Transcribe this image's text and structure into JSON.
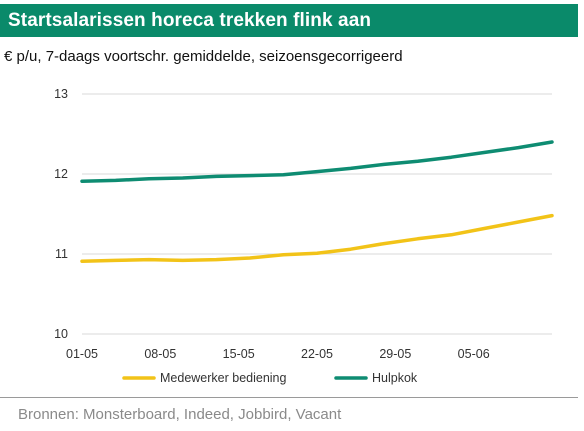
{
  "header": {
    "title": "Startsalarissen horeca trekken flink aan",
    "subtitle": "€ p/u, 7-daags voortschr. gemiddelde, seizoensgecorrigeerd"
  },
  "footer": {
    "source": "Bronnen: Monsterboard, Indeed, Jobbird, Vacant"
  },
  "colors": {
    "title_bg": "#0a8a6a",
    "series_medewerker": "#f2c318",
    "series_hulpkok": "#0e8c72",
    "gridline": "#d9d9d9"
  },
  "chart_data": {
    "type": "line",
    "title": "Startsalarissen horeca trekken flink aan",
    "subtitle": "€ p/u, 7-daags voortschr. gemiddelde, seizoensgecorrigeerd",
    "xlabel": "",
    "ylabel": "",
    "ylim": [
      10,
      13
    ],
    "yticks": [
      "10",
      "11",
      "12",
      "13"
    ],
    "xticks": [
      "01-05",
      "08-05",
      "15-05",
      "22-05",
      "29-05",
      "05-06"
    ],
    "grid": "horizontal",
    "legend_position": "bottom",
    "x_days": [
      0,
      3,
      6,
      9,
      12,
      15,
      18,
      21,
      24,
      27,
      30,
      33,
      36,
      39,
      42
    ],
    "series": [
      {
        "name": "Medewerker bediening",
        "color": "#f2c318",
        "values": [
          10.91,
          10.92,
          10.93,
          10.92,
          10.93,
          10.95,
          10.99,
          11.01,
          11.06,
          11.13,
          11.19,
          11.24,
          11.32,
          11.4,
          11.48
        ]
      },
      {
        "name": "Hulpkok",
        "color": "#0e8c72",
        "values": [
          11.91,
          11.92,
          11.94,
          11.95,
          11.97,
          11.98,
          11.99,
          12.03,
          12.07,
          12.12,
          12.16,
          12.21,
          12.27,
          12.33,
          12.4
        ]
      }
    ]
  }
}
